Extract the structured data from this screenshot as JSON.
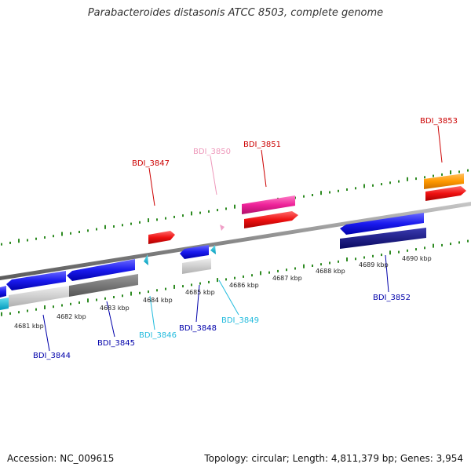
{
  "title": "Parabacteroides distasonis ATCC 8503, complete genome",
  "footer": {
    "accession": "Accession: NC_009615",
    "topology": "Topology: circular; Length: 4,811,379 bp; Genes: 3,954"
  },
  "colors": {
    "background": "#ffffff",
    "backbone": "#8a8a8a",
    "tick": "#2e8b22",
    "tick_label": "#222222",
    "label_red": "#cc0000",
    "label_pink": "#ee99bb",
    "label_blue": "#0000aa",
    "label_cyan": "#22bbdd"
  },
  "axis_labels": [
    "4681 kbp",
    "4682 kbp",
    "4683 kbp",
    "4684 kbp",
    "4685 kbp",
    "4686 kbp",
    "4687 kbp",
    "4688 kbp",
    "4689 kbp",
    "4690 kbp"
  ],
  "gene_labels": [
    {
      "text": "BDI_3853",
      "color": "red"
    },
    {
      "text": "BDI_3851",
      "color": "red"
    },
    {
      "text": "BDI_3850",
      "color": "pink"
    },
    {
      "text": "BDI_3847",
      "color": "red"
    },
    {
      "text": "BDI_3852",
      "color": "blue"
    },
    {
      "text": "BDI_3849",
      "color": "cyan"
    },
    {
      "text": "BDI_3848",
      "color": "blue"
    },
    {
      "text": "BDI_3846",
      "color": "cyan"
    },
    {
      "text": "BDI_3845",
      "color": "blue"
    },
    {
      "text": "BDI_3844",
      "color": "blue"
    }
  ]
}
